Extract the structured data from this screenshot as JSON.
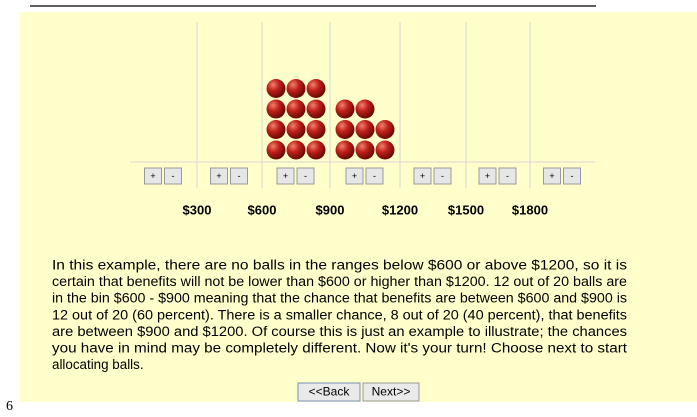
{
  "page_number": "6",
  "bins": {
    "counts": [
      0,
      0,
      12,
      8,
      0,
      0,
      0
    ],
    "boundary_labels": [
      "$300",
      "$600",
      "$900",
      "$1200",
      "$1500",
      "$1800"
    ],
    "plus_label": "+",
    "minus_label": "-"
  },
  "text": {
    "lines": [
      "In this example, there are no balls in the ranges below $600 or above $1200, so it is",
      "certain that benefits will not be lower than $600 or higher than $1200. 12 out of 20 balls are",
      "in the bin $600 - $900 meaning that the chance that benefits are between $600 and $900 is",
      "12 out of 20 (60 percent). There is a smaller chance, 8 out of 20 (40 percent), that benefits",
      "are between $900 and $1200. Of course this is just an example to illustrate; the chances",
      "you have in mind may be completely different. Now it's your turn! Choose next to start",
      "allocating balls."
    ]
  },
  "buttons": {
    "back": "<<Back",
    "next": "Next>>"
  }
}
